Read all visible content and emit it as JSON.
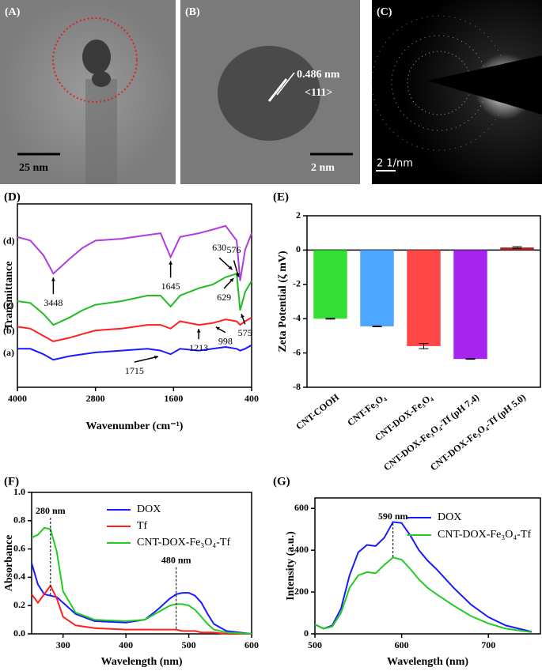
{
  "images": [
    {
      "panel": "(A)",
      "scale": "25 nm"
    },
    {
      "panel": "(B)",
      "spacing": "0.486 nm",
      "plane": "<111>",
      "scale": "2 nm"
    },
    {
      "panel": "(C)",
      "scale": "2 1/nm"
    }
  ],
  "chart_data": [
    {
      "type": "line",
      "panel": "(D)",
      "xlabel": "Wavenumber (cm⁻¹)",
      "ylabel": "Transmittance",
      "xlim": [
        4000,
        400
      ],
      "xticks": [
        4000,
        2800,
        1600,
        400
      ],
      "ylim": [
        0,
        100
      ],
      "x": [
        4000,
        3800,
        3600,
        3448,
        3200,
        3000,
        2800,
        2400,
        2000,
        1800,
        1645,
        1500,
        1213,
        1000,
        800,
        630,
        576,
        500,
        400
      ],
      "series": [
        {
          "name": "(a)",
          "color": "#1a1aff",
          "values": [
            21,
            21,
            18,
            15,
            17,
            18,
            19,
            20,
            21,
            20,
            18,
            21,
            20,
            21,
            22,
            21,
            20,
            21,
            23
          ]
        },
        {
          "name": "(b)",
          "color": "#ff2020",
          "values": [
            33,
            32,
            28,
            25,
            27,
            29,
            31,
            32,
            34,
            34,
            32,
            36,
            34,
            35,
            37,
            36,
            34,
            36,
            38
          ]
        },
        {
          "name": "(c)",
          "color": "#22bb22",
          "values": [
            47,
            46,
            40,
            34,
            38,
            42,
            45,
            47,
            50,
            50,
            44,
            50,
            54,
            56,
            60,
            62,
            42,
            52,
            58
          ]
        },
        {
          "name": "(d)",
          "color": "#b03ce0",
          "values": [
            82,
            80,
            72,
            62,
            70,
            76,
            80,
            81,
            83,
            84,
            71,
            82,
            84,
            86,
            88,
            80,
            58,
            75,
            84
          ]
        }
      ],
      "annotations": [
        3448,
        1645,
        576,
        630,
        629,
        575,
        1213,
        998,
        1715
      ]
    },
    {
      "type": "bar",
      "panel": "(E)",
      "ylabel": "Zeta Potential (ζ  mV)",
      "categories": [
        "CNT-COOH",
        "CNT-Fe₃O₄",
        "CNT-DOX-Fe₃O₄",
        "CNT-DOX-Fe₃O₄-Tf (pH 7.4)",
        "CNT-DOX-Fe₃O₄-Tf (pH 5.0)"
      ],
      "values": [
        -4.0,
        -4.45,
        -5.6,
        -6.35,
        0.15
      ],
      "errors": [
        0.03,
        0.02,
        0.15,
        0.02,
        0.05
      ],
      "colors": [
        "#33e033",
        "#4da6ff",
        "#ff4747",
        "#a625ee",
        "#aa2222"
      ],
      "ylim": [
        -8,
        2
      ],
      "yticks": [
        -8,
        -6,
        -4,
        -2,
        0,
        2
      ]
    },
    {
      "type": "line",
      "panel": "(F)",
      "xlabel": "Wavelength (nm)",
      "ylabel": "Absorbance",
      "xlim": [
        250,
        600
      ],
      "xticks": [
        300,
        400,
        500,
        600
      ],
      "ylim": [
        0,
        1.0
      ],
      "yticks": [
        {
          "value": 0,
          "label": "0.0"
        },
        0.2,
        0.4,
        0.6,
        0.8,
        {
          "value": 1.0,
          "label": "1.0"
        }
      ],
      "x": [
        250,
        260,
        270,
        280,
        290,
        300,
        320,
        350,
        400,
        430,
        450,
        470,
        480,
        490,
        500,
        510,
        520,
        530,
        540,
        560,
        600
      ],
      "series": [
        {
          "name": "DOX",
          "color": "#1a1aff",
          "values": [
            0.5,
            0.35,
            0.28,
            0.27,
            0.26,
            0.22,
            0.14,
            0.09,
            0.08,
            0.1,
            0.17,
            0.25,
            0.28,
            0.29,
            0.29,
            0.27,
            0.22,
            0.14,
            0.07,
            0.02,
            0.0
          ]
        },
        {
          "name": "Tf",
          "color": "#ff2020",
          "values": [
            0.28,
            0.22,
            0.28,
            0.34,
            0.25,
            0.12,
            0.06,
            0.04,
            0.03,
            0.03,
            0.03,
            0.03,
            0.03,
            0.02,
            0.02,
            0.02,
            0.01,
            0.01,
            0.01,
            0.0,
            0.0
          ]
        },
        {
          "name": "CNT-DOX-Fe₃O₄-Tf",
          "color": "#22cc22",
          "values": [
            0.68,
            0.7,
            0.75,
            0.74,
            0.58,
            0.3,
            0.15,
            0.1,
            0.09,
            0.1,
            0.15,
            0.2,
            0.21,
            0.21,
            0.2,
            0.17,
            0.12,
            0.07,
            0.03,
            0.01,
            0.0
          ]
        }
      ],
      "annotations": [
        {
          "x": 280,
          "text": "280 nm"
        },
        {
          "x": 480,
          "text": "480 nm"
        }
      ]
    },
    {
      "type": "line",
      "panel": "(G)",
      "xlabel": "Wavelength (nm)",
      "ylabel": "Intensity (a.u.)",
      "xlim": [
        500,
        760
      ],
      "xticks": [
        500,
        600,
        700
      ],
      "ylim": [
        0,
        650
      ],
      "yticks": [
        0,
        200,
        400,
        600
      ],
      "x": [
        500,
        510,
        520,
        530,
        540,
        550,
        560,
        570,
        580,
        590,
        600,
        610,
        620,
        630,
        640,
        660,
        680,
        700,
        720,
        750
      ],
      "series": [
        {
          "name": "DOX",
          "color": "#1a1aff",
          "values": [
            45,
            25,
            40,
            120,
            280,
            390,
            425,
            420,
            460,
            535,
            530,
            470,
            400,
            350,
            310,
            220,
            140,
            80,
            40,
            10
          ]
        },
        {
          "name": "CNT-DOX-Fe₃O₄-Tf",
          "color": "#22cc22",
          "values": [
            45,
            25,
            35,
            100,
            220,
            280,
            295,
            290,
            330,
            365,
            355,
            310,
            260,
            220,
            190,
            135,
            85,
            50,
            25,
            8
          ]
        }
      ],
      "annotations": [
        {
          "x": 590,
          "text": "590 nm"
        }
      ]
    }
  ]
}
